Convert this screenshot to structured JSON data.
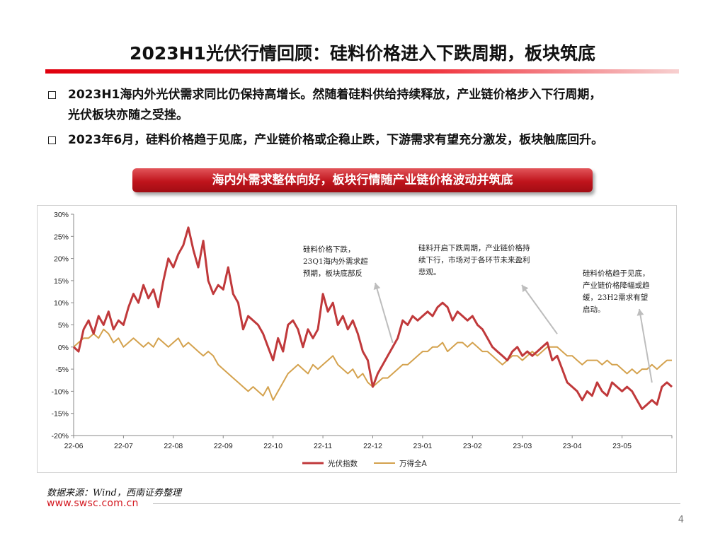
{
  "page": {
    "title": "2023H1光伏行情回顾：硅料价格进入下跌周期，板块筑底",
    "bullets": [
      {
        "line1": "2023H1海内外光伏需求同比仍保持高增长。然随着硅料供给持续释放，产业链价格步入下行周期，",
        "line2": "光伏板块亦随之受挫。"
      },
      {
        "line1": "2023年6月，硅料价格趋于见底，产业链价格或企稳止跌，下游需求有望充分激发，板块触底回升。",
        "line2": ""
      }
    ],
    "banner": "海内外需求整体向好，板块行情随产业链价格波动并筑底",
    "source": "数据来源：Wind，西南证券整理",
    "url": "www.swsc.com.cn",
    "page_number": "4"
  },
  "colors": {
    "pv": "#c0393b",
    "wind_all_a": "#d4a24e",
    "accent": "#d31820"
  },
  "chart_data": {
    "type": "line",
    "x_unit": "months since 2022-06",
    "xlim": [
      0,
      12
    ],
    "ylim": [
      -20,
      30
    ],
    "yticks": [
      -20,
      -15,
      -10,
      -5,
      0,
      5,
      10,
      15,
      20,
      25,
      30
    ],
    "yticklabels": [
      "-20%",
      "-15%",
      "-10%",
      "-5%",
      "0%",
      "5%",
      "10%",
      "15%",
      "20%",
      "25%",
      "30%"
    ],
    "categories": [
      "22-06",
      "22-07",
      "22-08",
      "22-09",
      "22-10",
      "22-11",
      "22-12",
      "23-01",
      "23-02",
      "23-03",
      "23-04",
      "23-05"
    ],
    "category_x": [
      0,
      1,
      2,
      3,
      4,
      5,
      6,
      7,
      8,
      9,
      10,
      11
    ],
    "grid": false,
    "legend_position": "bottom-center",
    "series": [
      {
        "name": "光伏指数",
        "x": [
          0,
          0.1,
          0.2,
          0.3,
          0.4,
          0.5,
          0.6,
          0.7,
          0.8,
          0.9,
          1.0,
          1.1,
          1.2,
          1.3,
          1.4,
          1.5,
          1.6,
          1.7,
          1.8,
          1.9,
          2.0,
          2.1,
          2.2,
          2.3,
          2.4,
          2.5,
          2.6,
          2.7,
          2.8,
          2.9,
          3.0,
          3.1,
          3.2,
          3.3,
          3.4,
          3.5,
          3.6,
          3.7,
          3.8,
          3.9,
          4.0,
          4.1,
          4.2,
          4.3,
          4.4,
          4.5,
          4.6,
          4.7,
          4.8,
          4.9,
          5.0,
          5.1,
          5.2,
          5.3,
          5.4,
          5.5,
          5.6,
          5.7,
          5.8,
          5.9,
          6.0,
          6.1,
          6.2,
          6.3,
          6.4,
          6.5,
          6.6,
          6.7,
          6.8,
          6.9,
          7.0,
          7.1,
          7.2,
          7.3,
          7.4,
          7.5,
          7.6,
          7.7,
          7.8,
          7.9,
          8.0,
          8.1,
          8.2,
          8.3,
          8.4,
          8.5,
          8.6,
          8.7,
          8.8,
          8.9,
          9.0,
          9.1,
          9.2,
          9.3,
          9.4,
          9.5,
          9.6,
          9.7,
          9.8,
          9.9,
          10.0,
          10.1,
          10.2,
          10.3,
          10.4,
          10.5,
          10.6,
          10.7,
          10.8,
          10.9,
          11.0,
          11.1,
          11.2,
          11.3,
          11.4,
          11.5,
          11.6,
          11.7,
          11.8,
          11.9,
          12.0
        ],
        "values": [
          0,
          -1,
          4,
          6,
          3,
          7,
          5,
          8,
          4,
          6,
          5,
          9,
          12,
          10,
          14,
          11,
          13,
          9,
          15,
          20,
          18,
          21,
          23,
          27,
          22,
          18,
          24,
          15,
          12,
          14,
          13,
          18,
          12,
          10,
          4,
          7,
          6,
          5,
          3,
          0,
          -3,
          2,
          -1,
          5,
          6,
          4,
          0,
          4,
          2,
          4,
          12,
          8,
          10,
          5,
          7,
          4,
          6,
          3,
          -1,
          -3,
          -9,
          -6,
          -4,
          -2,
          0,
          2,
          6,
          5,
          7,
          6,
          7,
          8,
          7,
          9,
          10,
          9,
          6,
          8,
          7,
          6,
          7,
          5,
          4,
          2,
          0,
          -1,
          -2,
          -3,
          -1,
          0,
          -2,
          -1,
          -2,
          -1,
          0,
          1,
          -3,
          -2,
          -5,
          -8,
          -9,
          -10,
          -12,
          -10,
          -11,
          -8,
          -10,
          -11,
          -8,
          -9,
          -10,
          -9,
          -10,
          -12,
          -14,
          -13,
          -12,
          -13,
          -9,
          -8,
          -9
        ]
      },
      {
        "name": "万得全A",
        "x": [
          0,
          0.1,
          0.2,
          0.3,
          0.4,
          0.5,
          0.6,
          0.7,
          0.8,
          0.9,
          1.0,
          1.1,
          1.2,
          1.3,
          1.4,
          1.5,
          1.6,
          1.7,
          1.8,
          1.9,
          2.0,
          2.1,
          2.2,
          2.3,
          2.4,
          2.5,
          2.6,
          2.7,
          2.8,
          2.9,
          3.0,
          3.1,
          3.2,
          3.3,
          3.4,
          3.5,
          3.6,
          3.7,
          3.8,
          3.9,
          4.0,
          4.1,
          4.2,
          4.3,
          4.4,
          4.5,
          4.6,
          4.7,
          4.8,
          4.9,
          5.0,
          5.1,
          5.2,
          5.3,
          5.4,
          5.5,
          5.6,
          5.7,
          5.8,
          5.9,
          6.0,
          6.1,
          6.2,
          6.3,
          6.4,
          6.5,
          6.6,
          6.7,
          6.8,
          6.9,
          7.0,
          7.1,
          7.2,
          7.3,
          7.4,
          7.5,
          7.6,
          7.7,
          7.8,
          7.9,
          8.0,
          8.1,
          8.2,
          8.3,
          8.4,
          8.5,
          8.6,
          8.7,
          8.8,
          8.9,
          9.0,
          9.1,
          9.2,
          9.3,
          9.4,
          9.5,
          9.6,
          9.7,
          9.8,
          9.9,
          10.0,
          10.1,
          10.2,
          10.3,
          10.4,
          10.5,
          10.6,
          10.7,
          10.8,
          10.9,
          11.0,
          11.1,
          11.2,
          11.3,
          11.4,
          11.5,
          11.6,
          11.7,
          11.8,
          11.9,
          12.0
        ],
        "values": [
          0,
          1,
          2,
          2,
          3,
          2,
          4,
          3,
          1,
          2,
          0,
          1,
          2,
          1,
          0,
          1,
          0,
          2,
          1,
          0,
          1,
          2,
          0,
          1,
          0,
          -1,
          -2,
          -1,
          -2,
          -4,
          -5,
          -6,
          -7,
          -8,
          -9,
          -10,
          -9,
          -10,
          -11,
          -9,
          -12,
          -10,
          -8,
          -6,
          -5,
          -4,
          -5,
          -6,
          -4,
          -5,
          -4,
          -3,
          -2,
          -4,
          -5,
          -6,
          -5,
          -7,
          -6,
          -8,
          -9,
          -8,
          -7,
          -7,
          -6,
          -5,
          -4,
          -4,
          -3,
          -2,
          -1,
          -1,
          0,
          0,
          1,
          -1,
          0,
          1,
          1,
          0,
          1,
          0,
          -1,
          -1,
          -2,
          -3,
          -4,
          -3,
          -2,
          -2,
          -3,
          -2,
          -1,
          -2,
          -1,
          0,
          0,
          0,
          -1,
          -2,
          -2,
          -3,
          -4,
          -3,
          -3,
          -3,
          -4,
          -3,
          -4,
          -4,
          -5,
          -6,
          -5,
          -6,
          -5,
          -5,
          -4,
          -5,
          -4,
          -3,
          -3
        ]
      }
    ],
    "annotations": [
      {
        "lines": [
          "硅料价格下跌，",
          "23Q1海内外需求超",
          "预期，板块底部反"
        ],
        "position": "upper-middle",
        "target_x": 6.4,
        "target_y": 0
      },
      {
        "lines": [
          "硅料开启下跌周期，产业链价格持",
          "续下行，市场对于各环节未来盈利",
          "悲观。"
        ],
        "position": "upper-center-right",
        "target_x": 9.7,
        "target_y": 2
      },
      {
        "lines": [
          "硅料价格趋于见底，",
          "产业链价格降幅或趋",
          "缓，23H2需求有望",
          "启动。"
        ],
        "position": "right",
        "target_x": 11.6,
        "target_y": -9
      }
    ]
  }
}
